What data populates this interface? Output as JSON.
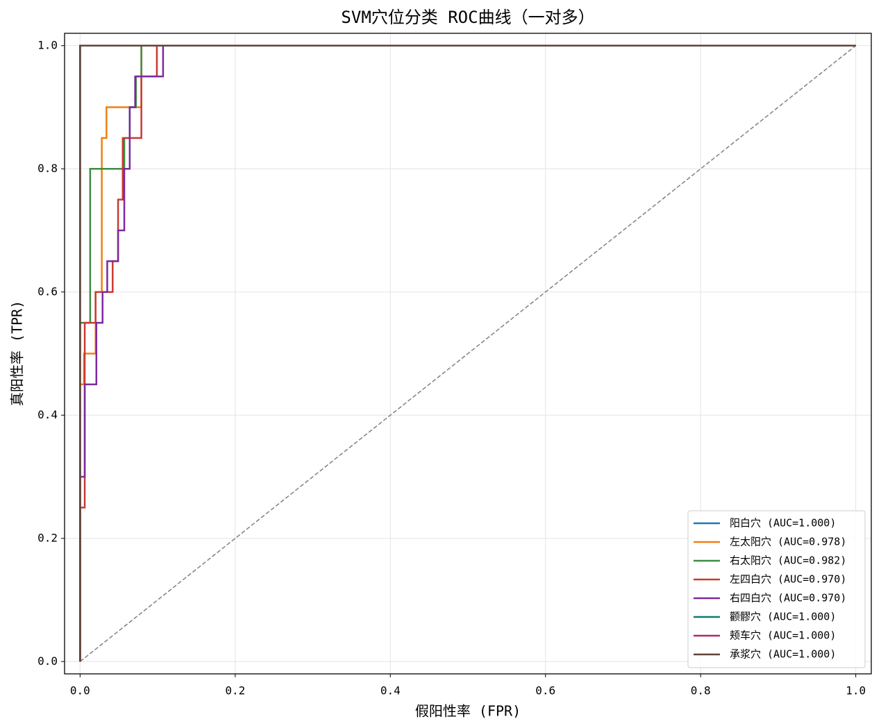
{
  "chart_data": {
    "type": "line",
    "title": "SVM穴位分类 ROC曲线（一对多）",
    "xlabel": "假阳性率 (FPR)",
    "ylabel": "真阳性率 (TPR)",
    "xlim": [
      -0.02,
      1.02
    ],
    "ylim": [
      -0.02,
      1.02
    ],
    "xticks": [
      {
        "value": 0,
        "label": "0.0"
      },
      {
        "value": 0.2,
        "label": "0.2"
      },
      {
        "value": 0.4,
        "label": "0.4"
      },
      {
        "value": 0.6,
        "label": "0.6"
      },
      {
        "value": 0.8,
        "label": "0.8"
      },
      {
        "value": 1,
        "label": "1.0"
      }
    ],
    "yticks": [
      {
        "value": 0,
        "label": "0.0"
      },
      {
        "value": 0.2,
        "label": "0.2"
      },
      {
        "value": 0.4,
        "label": "0.4"
      },
      {
        "value": 0.6,
        "label": "0.6"
      },
      {
        "value": 0.8,
        "label": "0.8"
      },
      {
        "value": 1,
        "label": "1.0"
      }
    ],
    "grid": true,
    "legend": "lower right",
    "reference_line": {
      "x": [
        0,
        1
      ],
      "values": [
        0,
        1
      ],
      "color": "#808080",
      "style": "dashed"
    },
    "series": [
      {
        "name": "阳白穴 (AUC=1.000)",
        "color": "#1f77b4",
        "x": [
          0,
          0,
          1
        ],
        "values": [
          0,
          1,
          1
        ]
      },
      {
        "name": "左太阳穴 (AUC=0.978)",
        "color": "#f07f13",
        "x": [
          0,
          0,
          0.005,
          0.005,
          0.02,
          0.02,
          0.028,
          0.028,
          0.034,
          0.034,
          0.079,
          0.079,
          1
        ],
        "values": [
          0,
          0.45,
          0.45,
          0.5,
          0.5,
          0.6,
          0.6,
          0.85,
          0.85,
          0.9,
          0.9,
          1,
          1
        ]
      },
      {
        "name": "右太阳穴 (AUC=0.982)",
        "color": "#3d8b40",
        "x": [
          0,
          0,
          0.013,
          0.013,
          0.057,
          0.057,
          0.064,
          0.064,
          0.072,
          0.072,
          0.079,
          0.079,
          1
        ],
        "values": [
          0,
          0.55,
          0.55,
          0.8,
          0.8,
          0.85,
          0.85,
          0.9,
          0.9,
          0.95,
          0.95,
          1,
          1
        ]
      },
      {
        "name": "左四白穴 (AUC=0.970)",
        "color": "#c93a32",
        "x": [
          0,
          0,
          0.006,
          0.006,
          0.02,
          0.02,
          0.042,
          0.042,
          0.049,
          0.049,
          0.055,
          0.055,
          0.079,
          0.079,
          0.099,
          0.099,
          1
        ],
        "values": [
          0,
          0.25,
          0.25,
          0.55,
          0.55,
          0.6,
          0.6,
          0.65,
          0.65,
          0.75,
          0.75,
          0.85,
          0.85,
          0.95,
          0.95,
          1,
          1
        ]
      },
      {
        "name": "右四白穴 (AUC=0.970)",
        "color": "#7b2aa0",
        "x": [
          0,
          0,
          0.006,
          0.006,
          0.021,
          0.021,
          0.029,
          0.029,
          0.035,
          0.035,
          0.049,
          0.049,
          0.057,
          0.057,
          0.064,
          0.064,
          0.071,
          0.071,
          0.107,
          0.107,
          1
        ],
        "values": [
          0,
          0.3,
          0.3,
          0.45,
          0.45,
          0.55,
          0.55,
          0.6,
          0.6,
          0.65,
          0.65,
          0.7,
          0.7,
          0.8,
          0.8,
          0.9,
          0.9,
          0.95,
          0.95,
          1,
          1
        ]
      },
      {
        "name": "颧髎穴 (AUC=1.000)",
        "color": "#0f7a70",
        "x": [
          0,
          0,
          1
        ],
        "values": [
          0,
          1,
          1
        ]
      },
      {
        "name": "颊车穴 (AUC=1.000)",
        "color": "#b5256a",
        "x": [
          0,
          0,
          1
        ],
        "values": [
          0,
          1,
          1
        ]
      },
      {
        "name": "承浆穴 (AUC=1.000)",
        "color": "#5d4337",
        "x": [
          0,
          0,
          1
        ],
        "values": [
          0,
          1,
          1
        ]
      }
    ]
  }
}
